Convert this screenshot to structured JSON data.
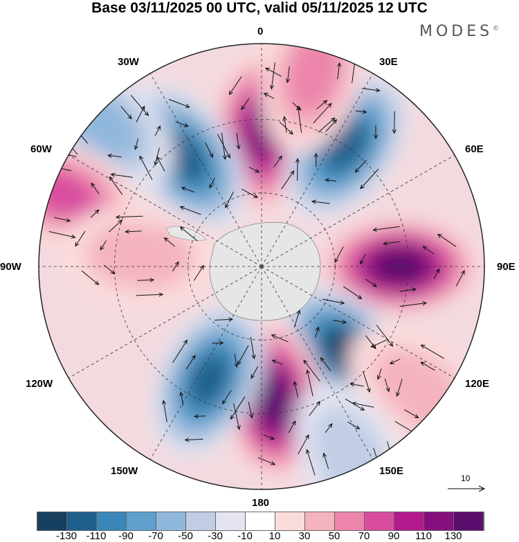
{
  "title": "Base 03/11/2025 00 UTC, valid 05/11/2025 12 UTC",
  "brand": "MODES",
  "brand_mark": "©",
  "longitude_labels": {
    "top": "0",
    "top_right": "30E",
    "right_upper": "60E",
    "right": "90E",
    "right_lower": "120E",
    "bottom_right": "150E",
    "bottom": "180",
    "bottom_left": "150W",
    "left_lower": "120W",
    "left": "90W",
    "left_upper": "60W",
    "top_left": "30W"
  },
  "reference_vector": "10",
  "colorbar": {
    "colors": [
      "#173f5f",
      "#1f5f8b",
      "#3a86b8",
      "#5fa0cc",
      "#90b7dc",
      "#c0cde5",
      "#e4e5f1",
      "#ffffff",
      "#fbdcdd",
      "#f4b3bf",
      "#ec84ac",
      "#d94d9f",
      "#b31a8e",
      "#850f7d",
      "#5b0d6e"
    ],
    "ticks": [
      "-130",
      "-110",
      "-90",
      "-70",
      "-50",
      "-30",
      "-10",
      "10",
      "30",
      "50",
      "70",
      "90",
      "110",
      "130"
    ]
  },
  "anomaly_centers": [
    {
      "lon": 0,
      "dist": 0.6,
      "value": 110
    },
    {
      "lon": 35,
      "dist": 0.66,
      "value": -110
    },
    {
      "lon": 90,
      "dist": 0.62,
      "value": 130
    },
    {
      "lon": 135,
      "dist": 0.55,
      "value": -130
    },
    {
      "lon": 175,
      "dist": 0.6,
      "value": 130
    },
    {
      "lon": -155,
      "dist": 0.56,
      "value": -120
    },
    {
      "lon": -35,
      "dist": 0.6,
      "value": -120
    },
    {
      "lon": -48,
      "dist": 0.95,
      "value": -50
    },
    {
      "lon": -70,
      "dist": 0.95,
      "value": 70
    },
    {
      "lon": -85,
      "dist": 0.55,
      "value": 35
    },
    {
      "lon": 15,
      "dist": 0.9,
      "value": 50
    },
    {
      "lon": 128,
      "dist": 0.9,
      "value": 30
    },
    {
      "lon": 155,
      "dist": 0.95,
      "value": -40
    }
  ]
}
